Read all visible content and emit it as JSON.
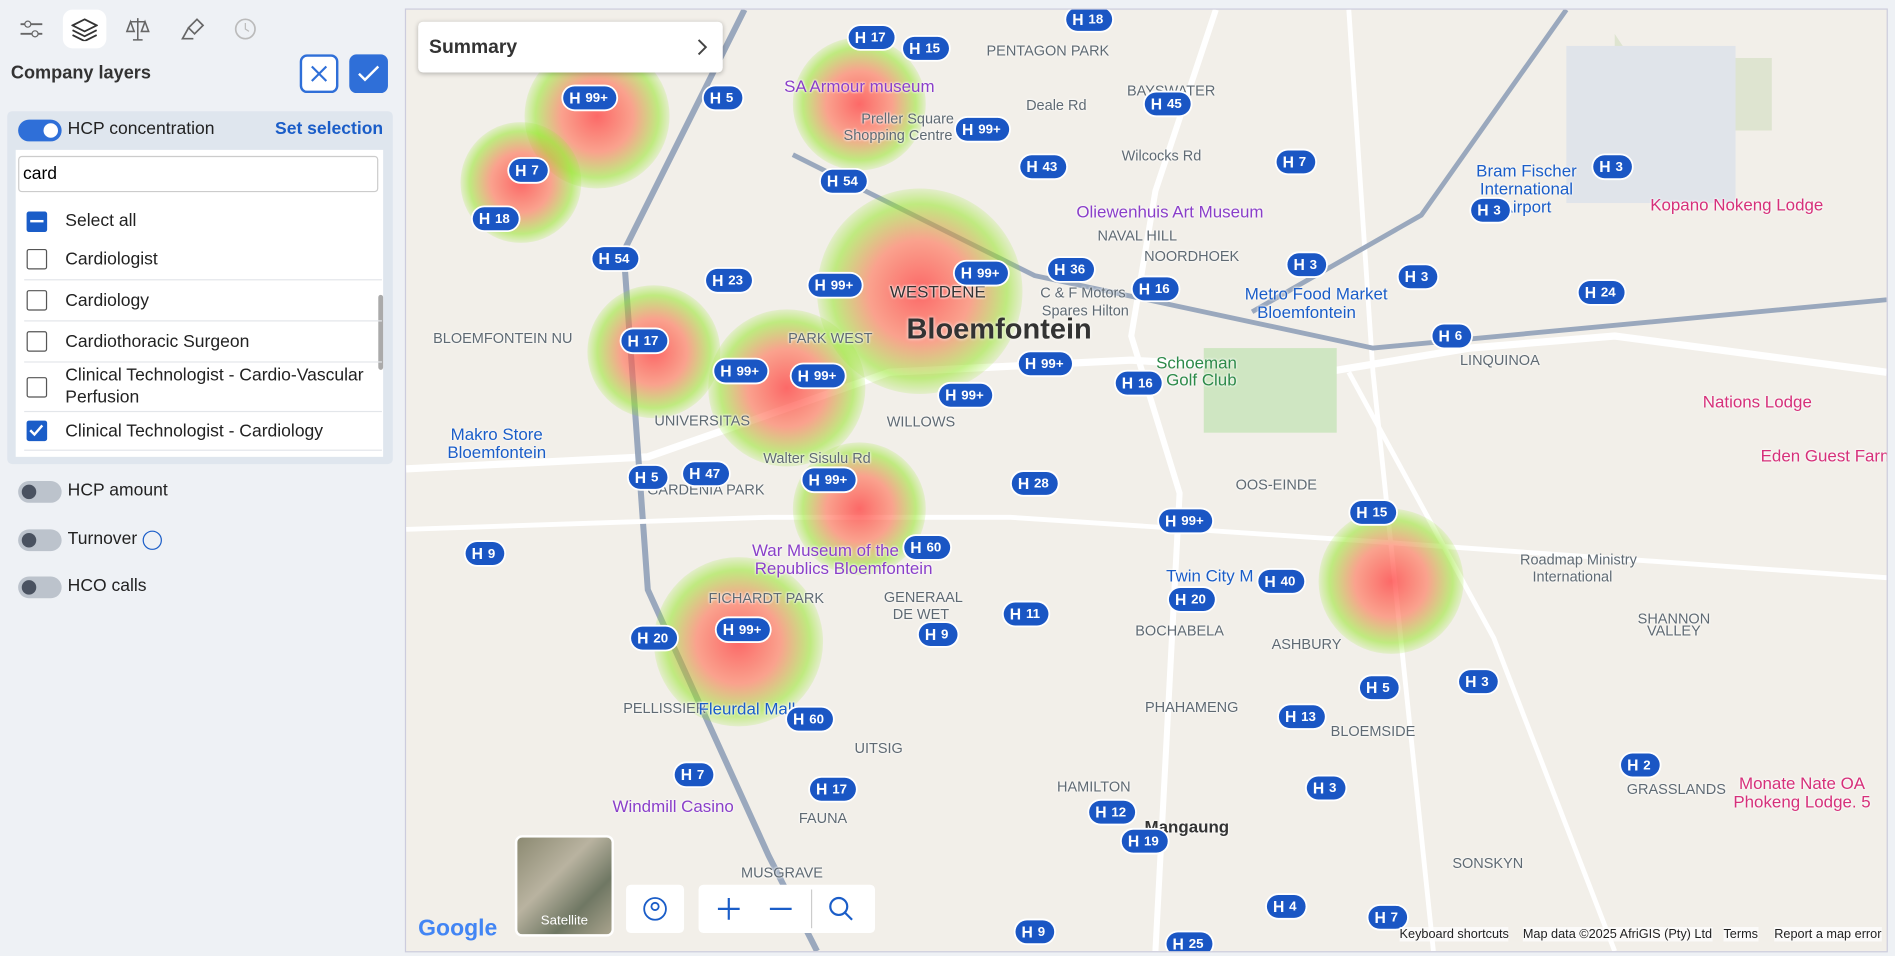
{
  "sidebar": {
    "title": "Company layers",
    "active_layer": {
      "name": "HCP concentration",
      "on": true,
      "action": "Set selection",
      "search": "card",
      "select_all": "Select all",
      "options": [
        {
          "label": "Cardiologist",
          "checked": false
        },
        {
          "label": "Cardiology",
          "checked": false
        },
        {
          "label": "Cardiothoracic Surgeon",
          "checked": false
        },
        {
          "label": "Clinical Technologist - Cardio-Vascular Perfusion",
          "checked": false
        },
        {
          "label": "Clinical Technologist - Cardiology",
          "checked": true
        }
      ]
    },
    "layers": [
      {
        "name": "HCP amount",
        "on": false
      },
      {
        "name": "Turnover",
        "on": false
      },
      {
        "name": "HCO calls",
        "on": false
      }
    ]
  },
  "map": {
    "summary": "Summary",
    "satellite": "Satellite",
    "city": "Bloemfontein",
    "markers": [
      "17",
      "15",
      "18",
      "99+",
      "5",
      "99+",
      "45",
      "7",
      "54",
      "43",
      "7",
      "18",
      "54",
      "23",
      "99+",
      "99+",
      "36",
      "16",
      "3",
      "3",
      "3",
      "3",
      "24",
      "6",
      "17",
      "99+",
      "99+",
      "99+",
      "99+",
      "16",
      "5",
      "47",
      "99+",
      "28",
      "9",
      "99+",
      "60",
      "15",
      "40",
      "20",
      "11",
      "9",
      "20",
      "99+",
      "5",
      "3",
      "60",
      "13",
      "7",
      "17",
      "3",
      "2",
      "12",
      "19",
      "4",
      "7",
      "9",
      "25"
    ],
    "labels": [
      "SA Armour museum",
      "Preller Square",
      "Shopping Centre",
      "Deale Rd",
      "Wilcocks Rd",
      "PENTAGON PARK",
      "BAYSWATER",
      "Oliewenhuis Art Museum",
      "NAVAL HILL",
      "NOORDHOEK",
      "Bram Fischer",
      "International",
      "Airport",
      "Kopano Nokeng Lodge",
      "WESTDENE",
      "C & F Motors",
      "Spares Hilton",
      "Metro Food Market",
      "Bloemfontein",
      "Schoeman",
      "Golf Club",
      "LINQUINOA",
      "Nations Lodge",
      "Eden Guest Farm",
      "PARK WEST",
      "UNIVERSITAS",
      "WILLOWS",
      "BLOEMFONTEIN NU",
      "Makro Store",
      "Bloemfontein",
      "Walter Sisulu Rd",
      "GARDENIA PARK",
      "OOS-EINDE",
      "War Museum of the",
      "Republics Bloemfontein",
      "GENERAAL",
      "DE WET",
      "Twin City M",
      "Roadmap Ministry",
      "International",
      "FICHARDT PARK",
      "BOCHABELA",
      "ASHBURY",
      "SHANNON",
      "VALLEY",
      "PELLISSIER",
      "Fleurdal Mall",
      "PHAHAMENG",
      "BLOEMSIDE",
      "UITSIG",
      "GRASSLANDS",
      "HAMILTON",
      "Monate Nate OA",
      "Phokeng Lodge. 5",
      "Windmill Casino",
      "FAUNA",
      "Mangaung",
      "SONSKYN",
      "MUSGRAVE"
    ],
    "footer": [
      "Google",
      "Keyboard shortcuts",
      "Map data ©2025 AfriGIS (Pty) Ltd",
      "Terms",
      "Report a map error"
    ]
  }
}
